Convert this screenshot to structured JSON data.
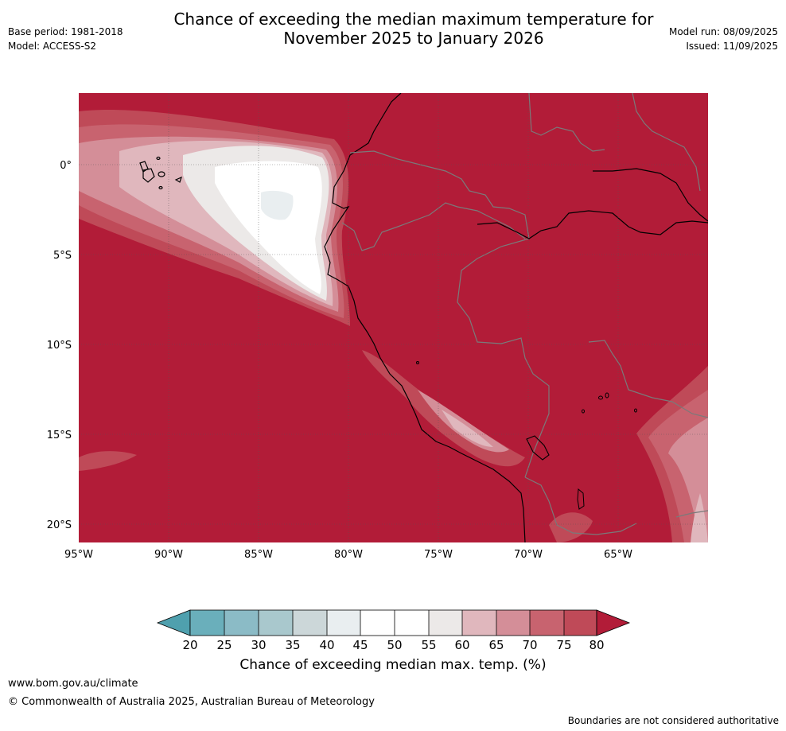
{
  "header": {
    "title_line1": "Chance of exceeding the median maximum temperature for",
    "title_line2": "November 2025 to January 2026",
    "base_period": "Base period: 1981-2018",
    "model": "Model: ACCESS-S2",
    "model_run": "Model run: 08/09/2025",
    "issued": "Issued: 11/09/2025"
  },
  "map": {
    "region": "Western South America",
    "lon_range": [
      -95,
      -60.5
    ],
    "lat_range": [
      -21,
      4
    ],
    "lat_ticks": [
      "0°",
      "5°S",
      "10°S",
      "15°S",
      "20°S"
    ],
    "lon_ticks": [
      "95°W",
      "90°W",
      "85°W",
      "80°W",
      "75°W",
      "70°W",
      "65°W"
    ],
    "dominant_value": "above 80"
  },
  "colorbar": {
    "labels": [
      "20",
      "25",
      "30",
      "35",
      "40",
      "45",
      "50",
      "55",
      "60",
      "65",
      "70",
      "75",
      "80"
    ],
    "colors": {
      "below20": "#4fa0ae",
      "20-25": "#6aafbb",
      "25-30": "#8bbbc6",
      "30-35": "#a9c8cd",
      "35-40": "#ccd7d9",
      "40-45": "#e9eef0",
      "45-50": "#ffffff",
      "50-55": "#ffffff",
      "55-60": "#ece9e8",
      "60-65": "#e0b7bd",
      "65-70": "#d48e98",
      "70-75": "#c8636f",
      "75-80": "#bf4a58",
      "above80": "#b21c38"
    },
    "title": "Chance of exceeding median max. temp. (%)"
  },
  "footer": {
    "url": "www.bom.gov.au/climate",
    "copyright": "© Commonwealth of Australia 2025, Australian Bureau of Meteorology",
    "disclaimer": "Boundaries are not considered authoritative"
  }
}
